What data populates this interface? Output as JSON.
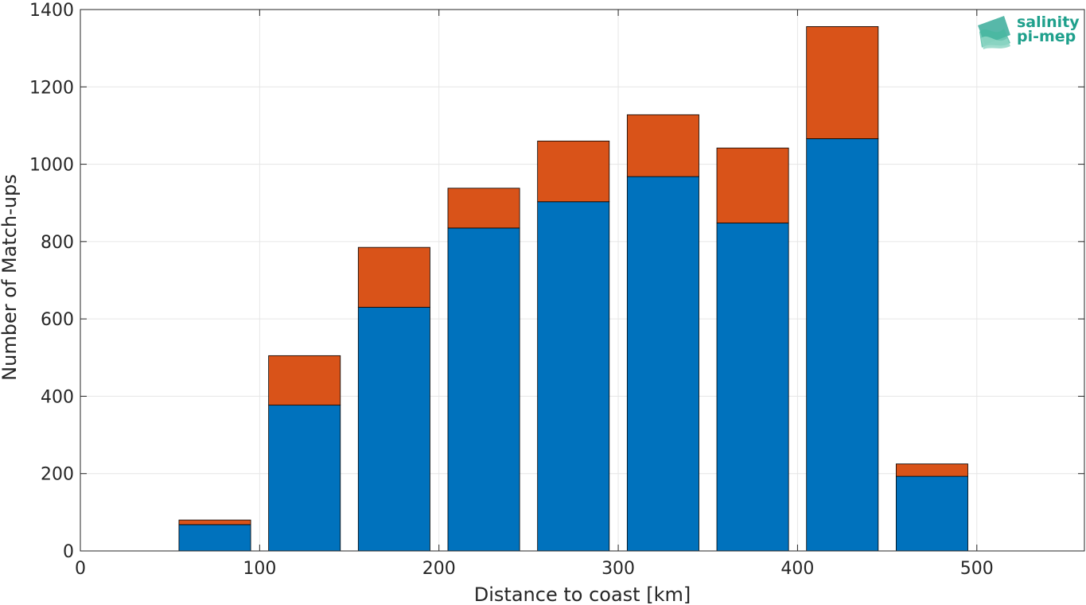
{
  "chart_data": {
    "type": "bar",
    "stacked": true,
    "xlabel": "Distance to coast [km]",
    "ylabel": "Number of Match-ups",
    "xlim": [
      0,
      560
    ],
    "ylim": [
      0,
      1400
    ],
    "xticks": [
      0,
      100,
      200,
      300,
      400,
      500
    ],
    "yticks": [
      0,
      200,
      400,
      600,
      800,
      1000,
      1200,
      1400
    ],
    "grid": true,
    "bar_width": 40,
    "x": [
      25,
      75,
      125,
      175,
      225,
      275,
      325,
      375,
      425,
      475,
      525
    ],
    "series": [
      {
        "color": "#0072bd",
        "values": [
          0,
          68,
          377,
          630,
          835,
          903,
          968,
          848,
          1066,
          193,
          0
        ]
      },
      {
        "color": "#d95319",
        "values": [
          0,
          12,
          128,
          155,
          103,
          157,
          160,
          194,
          290,
          32,
          0
        ]
      }
    ]
  },
  "logo": {
    "line1": "salinity",
    "line2": "pi-mep",
    "color": "#1fa08c"
  }
}
